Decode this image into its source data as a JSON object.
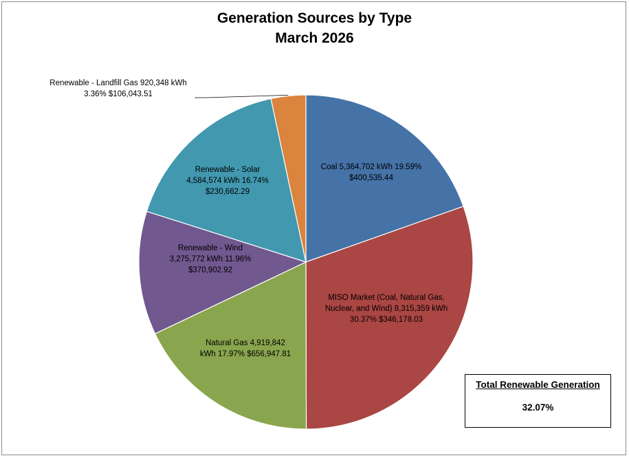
{
  "chart_data": {
    "type": "pie",
    "title": "Generation Sources by Type",
    "subtitle": "March 2026",
    "slices": [
      {
        "name": "Coal",
        "kwh": "5,364,702",
        "percent": 19.59,
        "percent_label": "19.59%",
        "cost": "$400,535.44",
        "color": "#4572A7",
        "label_lines": [
          "Coal  5,364,702   kWh  19.59%",
          "$400,535.44"
        ]
      },
      {
        "name": "MISO Market (Coal, Natural Gas, Nuclear, and Wind)",
        "kwh": "8,315,359",
        "percent": 30.37,
        "percent_label": "30.37%",
        "cost": "$346,178.03",
        "color": "#AA4643",
        "label_lines": [
          "MISO Market (Coal, Natural Gas,",
          "Nuclear, and Wind)  8,315,359   kWh",
          "30.37%  $346,178.03"
        ]
      },
      {
        "name": "Natural Gas",
        "kwh": "4,919,842",
        "percent": 17.97,
        "percent_label": "17.97%",
        "cost": "$656,947.81",
        "color": "#89A54E",
        "label_lines": [
          "Natural Gas  4,919,842",
          "kWh  17.97%  $656,947.81"
        ]
      },
      {
        "name": "Renewable - Wind",
        "kwh": "3,275,772",
        "percent": 11.96,
        "percent_label": "11.96%",
        "cost": "$370,902.92",
        "color": "#71588F",
        "label_lines": [
          "Renewable - Wind",
          "3,275,772   kWh  11.96%",
          "$370,902.92"
        ]
      },
      {
        "name": "Renewable - Solar",
        "kwh": "4,584,574",
        "percent": 16.74,
        "percent_label": "16.74%",
        "cost": "$230,662.29",
        "color": "#4198AF",
        "label_lines": [
          "Renewable - Solar",
          "4,584,574   kWh  16.74%",
          "$230,662.29"
        ]
      },
      {
        "name": "Renewable - Landfill Gas",
        "kwh": "920,348",
        "percent": 3.36,
        "percent_label": "3.36%",
        "cost": "$106,043.51",
        "color": "#DB843D",
        "label_lines": [
          "Renewable - Landfill Gas  920,348   kWh",
          "3.36%  $106,043.51"
        ]
      }
    ],
    "legend": "none",
    "start_angle": "12 o'clock",
    "direction": "clockwise"
  },
  "summary_box": {
    "title": "Total Renewable Generation",
    "value": "32.07%"
  }
}
